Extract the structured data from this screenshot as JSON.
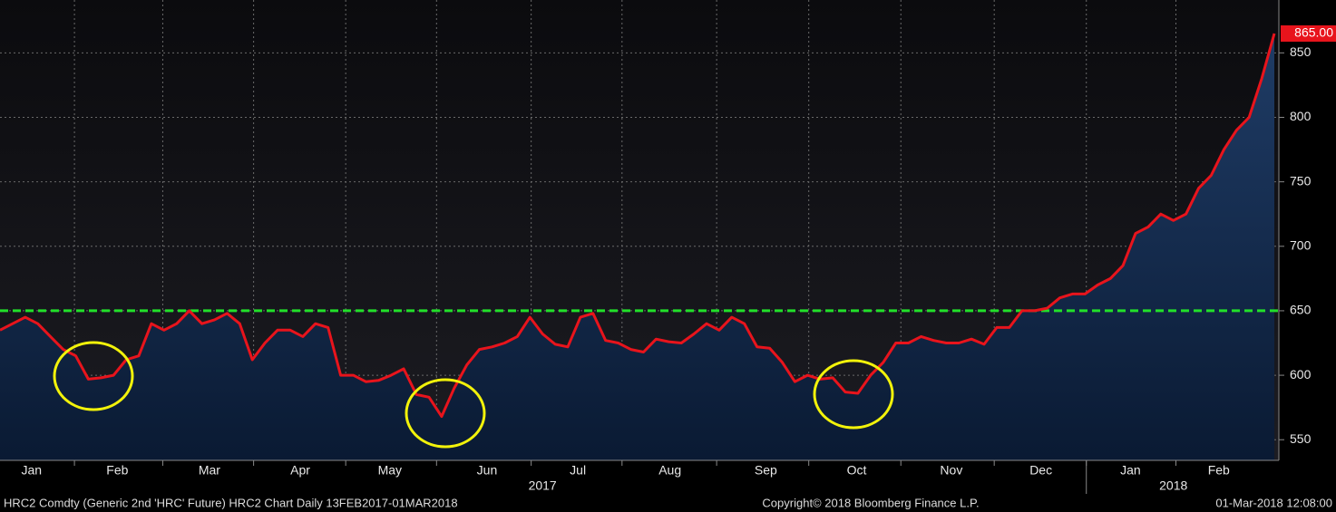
{
  "chart_data": {
    "type": "line",
    "series": [
      {
        "name": "HRC2",
        "color": "#e8141c",
        "values": [
          635,
          640,
          645,
          640,
          630,
          620,
          615,
          597,
          598,
          600,
          612,
          615,
          640,
          635,
          640,
          650,
          640,
          643,
          648,
          640,
          612,
          625,
          635,
          635,
          630,
          640,
          637,
          600,
          600,
          595,
          596,
          600,
          605,
          585,
          583,
          568,
          590,
          608,
          620,
          622,
          625,
          630,
          645,
          632,
          624,
          622,
          645,
          648,
          627,
          625,
          620,
          618,
          628,
          626,
          625,
          632,
          640,
          635,
          645,
          640,
          622,
          621,
          610,
          595,
          600,
          597,
          598,
          587,
          586,
          600,
          610,
          625,
          625,
          630,
          627,
          625,
          625,
          628,
          624,
          637,
          637,
          650,
          650,
          652,
          660,
          663,
          663,
          670,
          675,
          685,
          710,
          715,
          725,
          720,
          725,
          745,
          755,
          775,
          790,
          800,
          830,
          865
        ],
        "value_labels": {
          "101": "865.00"
        }
      }
    ],
    "xlim": [
      0,
      101
    ],
    "xgrid": [
      5.9,
      12.9,
      20.1,
      27.4,
      34.6,
      42.1,
      49.3,
      56.8,
      64.1,
      71.4,
      78.8,
      86.1,
      93.2
    ],
    "xticks": [
      {
        "value": 2.5,
        "label": "Jan"
      },
      {
        "value": 9.3,
        "label": "Feb"
      },
      {
        "value": 16.6,
        "label": "Mar"
      },
      {
        "value": 23.8,
        "label": "Apr"
      },
      {
        "value": 30.9,
        "label": "May"
      },
      {
        "value": 38.6,
        "label": "Jun"
      },
      {
        "value": 45.8,
        "label": "Jul"
      },
      {
        "value": 53.1,
        "label": "Aug"
      },
      {
        "value": 60.7,
        "label": "Sep"
      },
      {
        "value": 67.9,
        "label": "Oct"
      },
      {
        "value": 75.4,
        "label": "Nov"
      },
      {
        "value": 82.5,
        "label": "Dec"
      },
      {
        "value": 89.6,
        "label": "Jan"
      },
      {
        "value": 96.6,
        "label": "Feb"
      }
    ],
    "year_labels": [
      {
        "value": 43,
        "label": "2017"
      },
      {
        "value": 93,
        "label": "2018"
      }
    ],
    "year_divider": 86.1,
    "ylim": [
      534,
      891
    ],
    "yticks": [
      550,
      600,
      650,
      700,
      750,
      800,
      850
    ],
    "grid": true,
    "reference_line": {
      "value": 650,
      "color": "#22e02a"
    },
    "footer_left": "HRC2 Comdty (Generic 2nd 'HRC' Future) HRC2 Chart  Daily 13FEB2017-01MAR2018",
    "footer_center": "Copyright© 2018 Bloomberg Finance L.P.",
    "footer_right": "01-Mar-2018 12:08:00"
  }
}
